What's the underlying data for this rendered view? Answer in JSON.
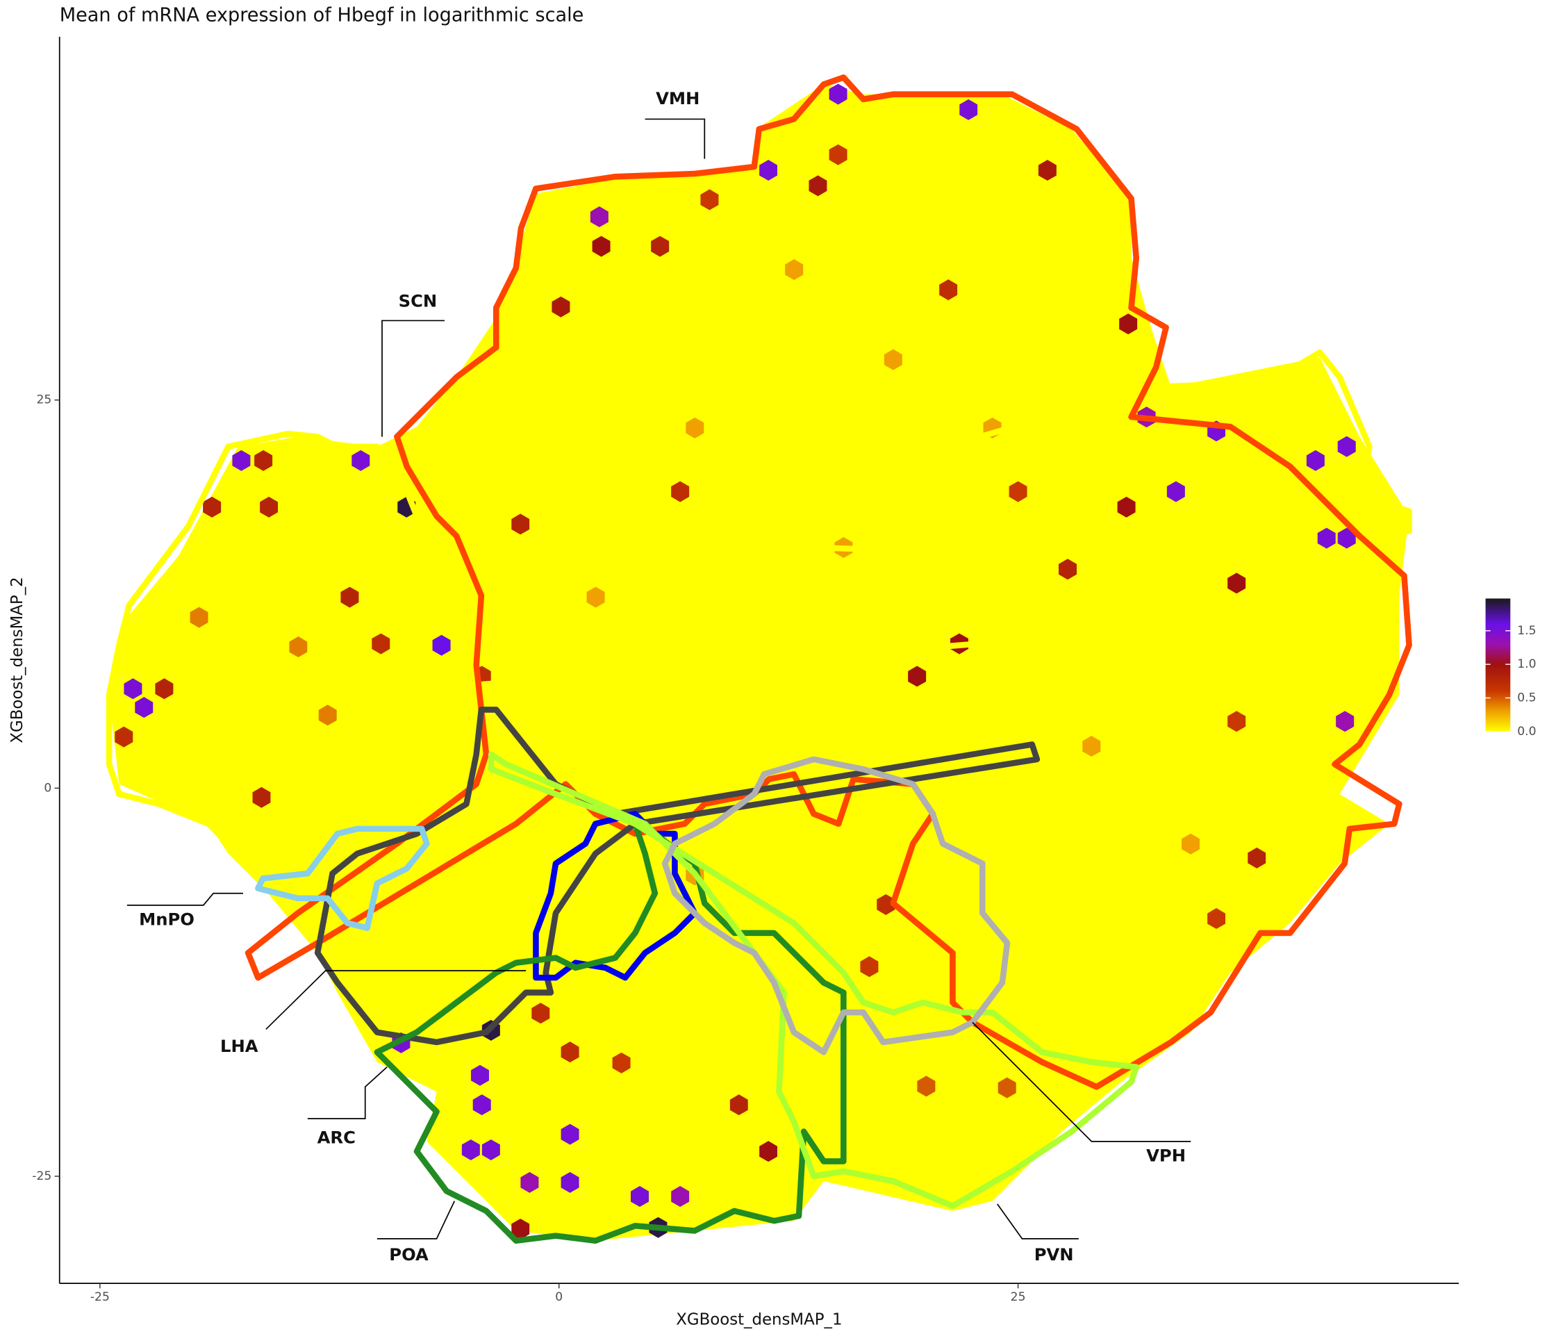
{
  "chart_data": {
    "type": "hexbin",
    "title": "Mean of mRNA expression of Hbegf in logarithmic scale",
    "x_label": "XGBoost_densMAP_1",
    "y_label": "XGBoost_densMAP_2",
    "xlim": [
      -27.2,
      49.0
    ],
    "ylim": [
      -31.9,
      48.4
    ],
    "xticks": [
      -25,
      0,
      25
    ],
    "yticks": [
      -25,
      0,
      25
    ],
    "hexes": {
      "x": [
        15.2,
        22.3,
        11.4,
        2.2,
        2.3,
        0.1,
        26.6,
        14.1,
        -8.3,
        -17.3,
        -10.8,
        -6.4,
        -23.2,
        -22.6,
        32.0,
        35.8,
        42.9,
        41.2,
        33.6,
        41.8,
        42.9,
        42.8,
        31.0,
        30.9,
        36.9,
        19.5,
        21.8,
        -3.7,
        -8.6,
        -4.3,
        -4.2,
        -4.8,
        -3.7,
        -1.6,
        0.6,
        0.6,
        4.4,
        6.6,
        5.4,
        -2.1,
        11.4,
        -16.1,
        -18.9,
        -15.8,
        -11.4,
        -21.5,
        -23.7,
        -16.2,
        -9.7,
        -4.2,
        -2.1,
        5.5,
        8.2,
        15.2,
        21.2,
        6.6,
        25.0,
        27.7,
        38.0,
        35.8,
        17.8,
        16.9,
        20.0,
        3.4,
        9.8,
        0.6,
        -1.0,
        24.4,
        36.9,
        12.8,
        18.2,
        7.4,
        23.6,
        2.0,
        15.5,
        -14.2,
        -19.6,
        -12.6,
        7.4,
        29.0,
        34.4
      ],
      "y": [
        44.7,
        43.7,
        39.8,
        36.8,
        34.9,
        31.0,
        39.8,
        38.8,
        18.1,
        21.1,
        21.1,
        9.2,
        6.4,
        5.2,
        23.9,
        23.0,
        22.0,
        21.1,
        19.1,
        16.1,
        16.1,
        4.3,
        29.9,
        18.1,
        13.2,
        7.2,
        9.3,
        -15.6,
        -16.4,
        -18.5,
        -20.4,
        -23.3,
        -23.3,
        -25.4,
        -25.4,
        -22.3,
        -26.3,
        -26.3,
        -28.3,
        -28.4,
        -23.4,
        21.1,
        18.1,
        18.1,
        12.3,
        6.4,
        3.3,
        -0.6,
        9.3,
        7.2,
        17.0,
        34.9,
        37.9,
        40.8,
        32.1,
        19.1,
        19.1,
        14.1,
        -4.5,
        -8.4,
        -7.5,
        -11.5,
        -19.2,
        -17.7,
        -20.4,
        -17.0,
        -14.5,
        -19.3,
        4.3,
        33.4,
        27.6,
        23.2,
        23.2,
        12.3,
        15.5,
        9.1,
        11.0,
        4.7,
        -5.6,
        2.7,
        -3.6
      ],
      "values": [
        1.5,
        1.5,
        1.5,
        1.3,
        1.0,
        0.9,
        0.9,
        0.9,
        1.9,
        1.5,
        1.5,
        1.6,
        1.5,
        1.5,
        1.3,
        1.5,
        1.5,
        1.5,
        1.5,
        1.5,
        1.5,
        1.3,
        1.0,
        1.0,
        1.0,
        1.0,
        1.0,
        1.9,
        1.5,
        1.5,
        1.5,
        1.5,
        1.5,
        1.3,
        1.5,
        1.5,
        1.5,
        1.3,
        1.9,
        1.0,
        1.0,
        0.8,
        0.8,
        0.8,
        0.8,
        0.8,
        0.7,
        0.8,
        0.7,
        0.7,
        0.8,
        0.8,
        0.6,
        0.6,
        0.7,
        0.7,
        0.6,
        0.8,
        0.8,
        0.6,
        0.7,
        0.6,
        0.5,
        0.6,
        0.8,
        0.7,
        0.7,
        0.5,
        0.6,
        0.3,
        0.3,
        0.3,
        0.3,
        0.3,
        0.3,
        0.4,
        0.4,
        0.4,
        0.3,
        0.3,
        0.3
      ]
    },
    "colorbar": {
      "lim": [
        0,
        1.98
      ],
      "ticks": [
        {
          "value": 0,
          "label": "0.0"
        },
        {
          "value": 0.5,
          "label": "0.5"
        },
        {
          "value": 1,
          "label": "1.0"
        },
        {
          "value": 1.5,
          "label": "1.5"
        }
      ],
      "colorscale": [
        [
          0,
          "#ffff00"
        ],
        [
          0.3,
          "#f0a000"
        ],
        [
          0.6,
          "#c83800"
        ],
        [
          1.0,
          "#a01010"
        ],
        [
          1.3,
          "#9a10b0"
        ],
        [
          1.6,
          "#6a10e8"
        ],
        [
          1.98,
          "#1a1a1a"
        ]
      ]
    },
    "regions": [
      {
        "label": "VMH"
      },
      {
        "label": "SCN"
      },
      {
        "label": "MnPO"
      },
      {
        "label": "LHA"
      },
      {
        "label": "ARC"
      },
      {
        "label": "POA"
      },
      {
        "label": "PVN"
      },
      {
        "label": "VPH"
      }
    ]
  }
}
